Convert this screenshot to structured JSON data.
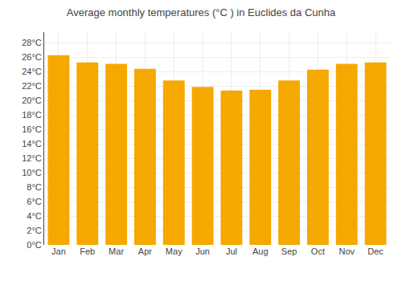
{
  "chart_data": {
    "type": "bar",
    "title": "Average monthly temperatures (°C ) in Euclides da Cunha",
    "categories": [
      "Jan",
      "Feb",
      "Mar",
      "Apr",
      "May",
      "Jun",
      "Jul",
      "Aug",
      "Sep",
      "Oct",
      "Nov",
      "Dec"
    ],
    "values": [
      26.3,
      25.3,
      25.1,
      24.4,
      22.8,
      21.9,
      21.4,
      21.5,
      22.8,
      24.3,
      25.1,
      25.3
    ],
    "color": "#F5A800",
    "ylim": [
      0,
      29.5
    ],
    "yticks": [
      {
        "value": 0,
        "label": "0°C"
      },
      {
        "value": 2,
        "label": "2°C"
      },
      {
        "value": 4,
        "label": "4°C"
      },
      {
        "value": 6,
        "label": "6°C"
      },
      {
        "value": 8,
        "label": "8°C"
      },
      {
        "value": 10,
        "label": "10°C"
      },
      {
        "value": 12,
        "label": "12°C"
      },
      {
        "value": 14,
        "label": "14°C"
      },
      {
        "value": 16,
        "label": "16°C"
      },
      {
        "value": 18,
        "label": "18°C"
      },
      {
        "value": 20,
        "label": "20°C"
      },
      {
        "value": 22,
        "label": "22°C"
      },
      {
        "value": 24,
        "label": "24°C"
      },
      {
        "value": 26,
        "label": "26°C"
      },
      {
        "value": 28,
        "label": "28°C"
      }
    ],
    "grid": true
  }
}
